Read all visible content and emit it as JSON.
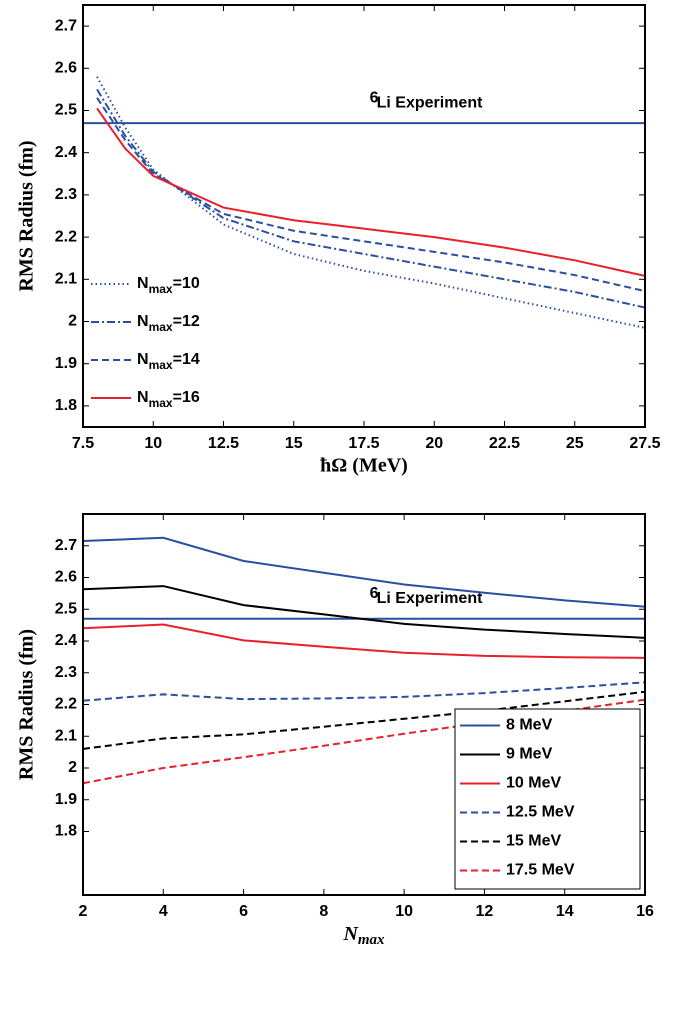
{
  "chart_data": [
    {
      "type": "line",
      "y_label": "RMS Radius (fm)",
      "x_label": "ħΩ (MeV)",
      "xlim": [
        7.5,
        27.5
      ],
      "xticks": [
        7.5,
        10,
        12.5,
        15,
        17.5,
        20,
        22.5,
        25,
        27.5
      ],
      "ylim": [
        1.75,
        2.75
      ],
      "yticks": [
        1.8,
        1.9,
        2,
        2.1,
        2.2,
        2.3,
        2.4,
        2.5,
        2.6,
        2.7
      ],
      "reference_line": {
        "value": 2.47,
        "color": "#2b4fa0",
        "sup": "6",
        "text": "Li Experiment"
      },
      "legend": "lower left",
      "x": [
        8,
        9,
        10,
        12.5,
        15,
        17.5,
        20,
        22.5,
        25,
        27.5
      ],
      "series": [
        {
          "name": "Nmax=10",
          "color": "#2b4fa0",
          "dash": "dotted",
          "values": [
            2.58,
            2.46,
            2.36,
            2.23,
            2.16,
            2.12,
            2.09,
            2.055,
            2.02,
            1.985
          ]
        },
        {
          "name": "Nmax=12",
          "color": "#2b4fa0",
          "dash": "dashdot",
          "values": [
            2.55,
            2.44,
            2.355,
            2.245,
            2.19,
            2.16,
            2.13,
            2.1,
            2.07,
            2.033
          ]
        },
        {
          "name": "Nmax=14",
          "color": "#2b4fa0",
          "dash": "dashed",
          "values": [
            2.53,
            2.43,
            2.35,
            2.255,
            2.215,
            2.19,
            2.165,
            2.14,
            2.11,
            2.072
          ]
        },
        {
          "name": "Nmax=16",
          "color": "#e8202a",
          "dash": "solid",
          "values": [
            2.505,
            2.41,
            2.345,
            2.27,
            2.24,
            2.22,
            2.2,
            2.175,
            2.145,
            2.108
          ]
        }
      ]
    },
    {
      "type": "line",
      "y_label": "RMS Radius (fm)",
      "x_label": "Nmax",
      "xlim": [
        2,
        16
      ],
      "xticks": [
        2,
        4,
        6,
        8,
        10,
        12,
        14,
        16
      ],
      "ylim": [
        1.6,
        2.8
      ],
      "yticks": [
        1.8,
        1.9,
        2,
        2.1,
        2.2,
        2.3,
        2.4,
        2.5,
        2.6,
        2.7
      ],
      "reference_line": {
        "value": 2.47,
        "color": "#2b4fa0",
        "sup": "6",
        "text": "Li Experiment"
      },
      "legend": "lower right",
      "x": [
        2,
        4,
        6,
        8,
        10,
        12,
        14,
        16
      ],
      "series": [
        {
          "name": "8 MeV",
          "color": "#2b4fa0",
          "dash": "solid",
          "values": [
            2.715,
            2.725,
            2.652,
            2.615,
            2.578,
            2.552,
            2.528,
            2.508
          ]
        },
        {
          "name": "9 MeV",
          "color": "#000000",
          "dash": "solid",
          "values": [
            2.563,
            2.573,
            2.513,
            2.484,
            2.454,
            2.436,
            2.422,
            2.41
          ]
        },
        {
          "name": "10 MeV",
          "color": "#e8202a",
          "dash": "solid",
          "values": [
            2.44,
            2.452,
            2.402,
            2.382,
            2.363,
            2.353,
            2.349,
            2.347
          ]
        },
        {
          "name": "12.5 MeV",
          "color": "#2b4fa0",
          "dash": "dashed",
          "values": [
            2.212,
            2.232,
            2.217,
            2.219,
            2.224,
            2.236,
            2.252,
            2.27
          ]
        },
        {
          "name": "15 MeV",
          "color": "#000000",
          "dash": "dashed",
          "values": [
            2.06,
            2.093,
            2.106,
            2.13,
            2.155,
            2.18,
            2.21,
            2.24
          ]
        },
        {
          "name": "17.5 MeV",
          "color": "#e8202a",
          "dash": "dashed",
          "values": [
            1.952,
            2.0,
            2.034,
            2.07,
            2.108,
            2.143,
            2.18,
            2.215
          ]
        }
      ]
    }
  ]
}
